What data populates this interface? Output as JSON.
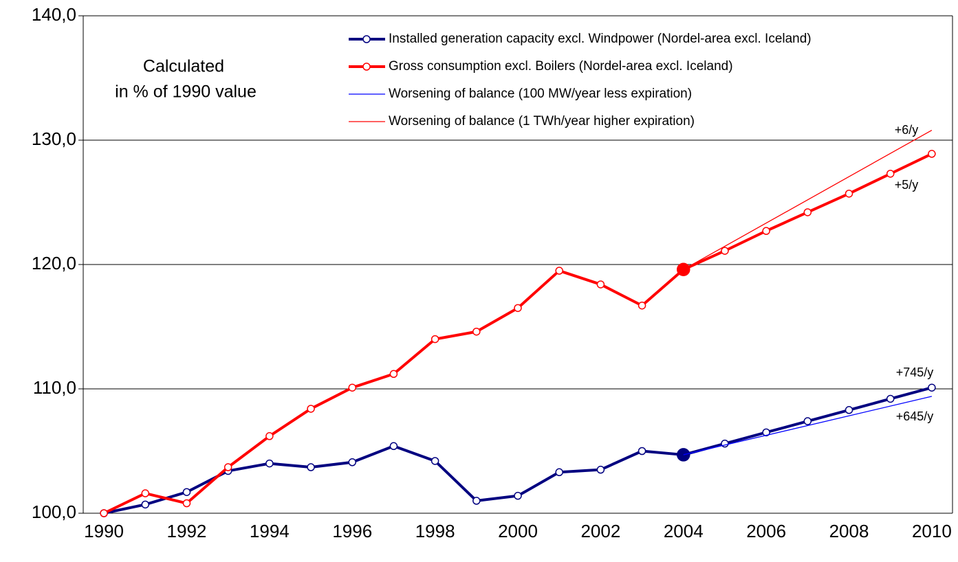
{
  "chart_data": {
    "type": "line",
    "subtitle_lines": [
      "Calculated",
      "in % of 1990 value"
    ],
    "xlim": [
      1989.5,
      2010.5
    ],
    "xticks": [
      1990,
      1992,
      1994,
      1996,
      1998,
      2000,
      2002,
      2004,
      2006,
      2008,
      2010
    ],
    "ylim": [
      100,
      140
    ],
    "yticks": [
      {
        "value": 100,
        "label": "100,0"
      },
      {
        "value": 110,
        "label": "110,0"
      },
      {
        "value": 120,
        "label": "120,0"
      },
      {
        "value": 130,
        "label": "130,0"
      },
      {
        "value": 140,
        "label": "140,0"
      }
    ],
    "grid": true,
    "highlight_x": 2004,
    "series": [
      {
        "name": "Installed generation capacity excl. Windpower (Nordel-area excl. Iceland)",
        "color": "#000080",
        "marker": true,
        "x": [
          1990,
          1991,
          1992,
          1993,
          1994,
          1995,
          1996,
          1997,
          1998,
          1999,
          2000,
          2001,
          2002,
          2003,
          2004,
          2005,
          2006,
          2007,
          2008,
          2009,
          2010
        ],
        "values": [
          100.0,
          100.7,
          101.7,
          103.4,
          104.0,
          103.7,
          104.1,
          105.4,
          104.2,
          101.0,
          101.4,
          103.3,
          103.5,
          105.0,
          104.7,
          105.6,
          106.5,
          107.4,
          108.3,
          109.2,
          110.1
        ]
      },
      {
        "name": "Gross consumption excl. Boilers (Nordel-area excl. Iceland)",
        "color": "#ff0000",
        "marker": true,
        "x": [
          1990,
          1991,
          1992,
          1993,
          1994,
          1995,
          1996,
          1997,
          1998,
          1999,
          2000,
          2001,
          2002,
          2003,
          2004,
          2005,
          2006,
          2007,
          2008,
          2009,
          2010
        ],
        "values": [
          100.0,
          101.6,
          100.8,
          103.7,
          106.2,
          108.4,
          110.1,
          111.2,
          114.0,
          114.6,
          116.5,
          119.5,
          118.4,
          116.7,
          119.6,
          121.1,
          122.7,
          124.2,
          125.7,
          127.3,
          128.9
        ]
      },
      {
        "name": "Worsening of balance (100 MW/year less expiration)",
        "color": "#0000ff",
        "marker": false,
        "x": [
          2004,
          2010
        ],
        "values": [
          104.7,
          109.4
        ]
      },
      {
        "name": "Worsening of balance (1 TWh/year higher expiration)",
        "color": "#ff0000",
        "marker": false,
        "x": [
          2004,
          2010
        ],
        "values": [
          119.6,
          130.8
        ]
      }
    ],
    "annotations": [
      "+6/y",
      "+5/y",
      "+745/y",
      "+645/y"
    ]
  }
}
